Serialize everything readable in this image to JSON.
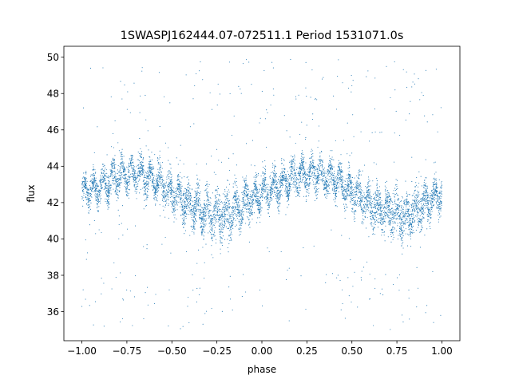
{
  "chart_data": {
    "type": "scatter",
    "title": "1SWASPJ162444.07-072511.1 Period 1531071.0s",
    "xlabel": "phase",
    "ylabel": "flux",
    "xlim": [
      -1.1,
      1.1
    ],
    "ylim": [
      34.4,
      50.6
    ],
    "xticks": [
      -1.0,
      -0.75,
      -0.5,
      -0.25,
      0.0,
      0.25,
      0.5,
      0.75,
      1.0
    ],
    "xtick_labels": [
      "−1.00",
      "−0.75",
      "−0.50",
      "−0.25",
      "0.00",
      "0.25",
      "0.50",
      "0.75",
      "1.00"
    ],
    "yticks": [
      36,
      38,
      40,
      42,
      44,
      46,
      48,
      50
    ],
    "ytick_labels": [
      "36",
      "38",
      "40",
      "42",
      "44",
      "46",
      "48",
      "50"
    ],
    "grid": false,
    "marker_color": "#1f77b4",
    "series": [
      {
        "note_phase_range": [
          -1.0,
          1.0
        ],
        "profile_phase": [
          -1.0,
          -0.9,
          -0.8,
          -0.7,
          -0.6,
          -0.5,
          -0.4,
          -0.3,
          -0.2,
          -0.1,
          0.0,
          0.1,
          0.2,
          0.3,
          0.4,
          0.5,
          0.6,
          0.7,
          0.8,
          0.9,
          1.0
        ],
        "profile_mean_flux": [
          42.6,
          42.9,
          43.5,
          43.6,
          43.3,
          42.6,
          41.9,
          41.5,
          41.2,
          41.9,
          42.6,
          42.9,
          43.5,
          43.6,
          43.3,
          42.6,
          41.9,
          41.5,
          41.2,
          41.9,
          42.6
        ],
        "profile_min_flux": [
          40.8,
          40.8,
          41.2,
          41.5,
          41.0,
          40.2,
          39.2,
          38.8,
          38.3,
          39.5,
          40.8,
          40.8,
          41.2,
          41.5,
          41.0,
          40.2,
          39.2,
          38.8,
          38.3,
          39.5,
          40.8
        ],
        "profile_max_flux": [
          44.2,
          44.8,
          45.5,
          45.2,
          45.0,
          44.6,
          44.3,
          44.3,
          44.4,
          44.7,
          44.9,
          44.8,
          45.5,
          45.2,
          45.0,
          44.6,
          44.3,
          44.3,
          44.4,
          44.7,
          44.2
        ],
        "outlier_flux_range": [
          35.0,
          49.9
        ]
      }
    ]
  }
}
